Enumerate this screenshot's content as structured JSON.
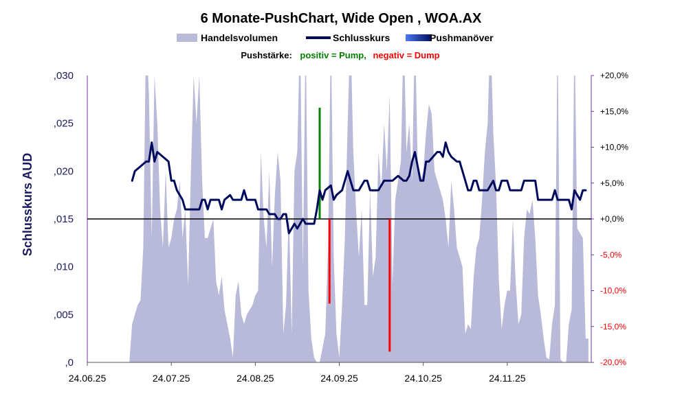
{
  "chart_data": {
    "type": "line",
    "title": "6 Monate-PushChart, Wide Open , WOA.AX",
    "legend": {
      "placement": "top-center",
      "items": [
        {
          "label": "Handelsvolumen",
          "color": "#b9b9d9"
        },
        {
          "label": "Schlusskurs",
          "color": "#000a5c"
        },
        {
          "label": "Pushmanöver",
          "color": "#3a5fd6"
        }
      ]
    },
    "push_legend": {
      "label": "Pushstärke:",
      "positive": "positiv = Pump,",
      "negative": "negativ = Dump",
      "positive_color": "#008000",
      "negative_color": "#ff0000"
    },
    "ylabel": "Schlusskurs AUD",
    "ylim": [
      0,
      0.03
    ],
    "yticks": [
      ",030",
      ",025",
      ",020",
      ",015",
      ",010",
      ",005",
      ",0"
    ],
    "y2lim": [
      -20,
      20
    ],
    "y2ticks": [
      {
        "label": "+20,0%",
        "color": "#000000"
      },
      {
        "label": "+15,0%",
        "color": "#000000"
      },
      {
        "label": "+10,0%",
        "color": "#000000"
      },
      {
        "label": "+5,0%",
        "color": "#000000"
      },
      {
        "label": "+0,0%",
        "color": "#000000"
      },
      {
        "label": "-5,0%",
        "color": "#ff0000"
      },
      {
        "label": "-10,0%",
        "color": "#ff0000"
      },
      {
        "label": "-15,0%",
        "color": "#ff0000"
      },
      {
        "label": "-20,0%",
        "color": "#ff0000"
      }
    ],
    "xticks": [
      "24.06.25",
      "24.07.25",
      "24.08.25",
      "24.09.25",
      "24.10.25",
      "24.11.25"
    ],
    "x_range_days": [
      0,
      180
    ],
    "grid": false,
    "close": [
      [
        16,
        0.019
      ],
      [
        17,
        0.02
      ],
      [
        19,
        0.0205
      ],
      [
        21,
        0.021
      ],
      [
        22,
        0.021
      ],
      [
        23,
        0.023
      ],
      [
        24,
        0.021
      ],
      [
        25,
        0.022
      ],
      [
        27,
        0.0215
      ],
      [
        29,
        0.021
      ],
      [
        30,
        0.019
      ],
      [
        31,
        0.019
      ],
      [
        32,
        0.018
      ],
      [
        34,
        0.017
      ],
      [
        35,
        0.016
      ],
      [
        37,
        0.016
      ],
      [
        40,
        0.016
      ],
      [
        41,
        0.017
      ],
      [
        42,
        0.017
      ],
      [
        43,
        0.016
      ],
      [
        44,
        0.017
      ],
      [
        47,
        0.017
      ],
      [
        48,
        0.016
      ],
      [
        49,
        0.017
      ],
      [
        51,
        0.0175
      ],
      [
        52,
        0.017
      ],
      [
        55,
        0.017
      ],
      [
        56,
        0.018
      ],
      [
        57,
        0.017
      ],
      [
        60,
        0.017
      ],
      [
        61,
        0.016
      ],
      [
        62,
        0.016
      ],
      [
        64,
        0.016
      ],
      [
        65,
        0.0155
      ],
      [
        67,
        0.0155
      ],
      [
        68,
        0.015
      ],
      [
        69,
        0.015
      ],
      [
        70,
        0.0155
      ],
      [
        71,
        0.0155
      ],
      [
        72,
        0.0135
      ],
      [
        74,
        0.0145
      ],
      [
        75,
        0.014
      ],
      [
        76,
        0.0145
      ],
      [
        77,
        0.015
      ],
      [
        78,
        0.0145
      ],
      [
        79,
        0.0145
      ],
      [
        81,
        0.0145
      ],
      [
        82,
        0.016
      ],
      [
        83,
        0.018
      ],
      [
        84,
        0.017
      ],
      [
        85,
        0.018
      ],
      [
        87,
        0.0185
      ],
      [
        88,
        0.017
      ],
      [
        89,
        0.0175
      ],
      [
        91,
        0.018
      ],
      [
        93,
        0.02
      ],
      [
        94,
        0.019
      ],
      [
        95,
        0.018
      ],
      [
        97,
        0.018
      ],
      [
        99,
        0.019
      ],
      [
        100,
        0.019
      ],
      [
        101,
        0.018
      ],
      [
        104,
        0.018
      ],
      [
        106,
        0.019
      ],
      [
        107,
        0.019
      ],
      [
        108,
        0.019
      ],
      [
        109,
        0.019
      ],
      [
        111,
        0.0195
      ],
      [
        113,
        0.019
      ],
      [
        114,
        0.019
      ],
      [
        115,
        0.0195
      ],
      [
        116,
        0.021
      ],
      [
        117,
        0.022
      ],
      [
        119,
        0.019
      ],
      [
        120,
        0.019
      ],
      [
        121,
        0.021
      ],
      [
        122,
        0.021
      ],
      [
        125,
        0.022
      ],
      [
        126,
        0.022
      ],
      [
        127,
        0.0215
      ],
      [
        128,
        0.023
      ],
      [
        129,
        0.022
      ],
      [
        130,
        0.0215
      ],
      [
        132,
        0.021
      ],
      [
        133,
        0.021
      ],
      [
        135,
        0.019
      ],
      [
        136,
        0.018
      ],
      [
        137,
        0.018
      ],
      [
        138,
        0.019
      ],
      [
        139,
        0.019
      ],
      [
        140,
        0.018
      ],
      [
        142,
        0.018
      ],
      [
        143,
        0.018
      ],
      [
        144,
        0.0185
      ],
      [
        145,
        0.019
      ],
      [
        146,
        0.018
      ],
      [
        147,
        0.018
      ],
      [
        148,
        0.019
      ],
      [
        150,
        0.019
      ],
      [
        151,
        0.018
      ],
      [
        152,
        0.018
      ],
      [
        155,
        0.018
      ],
      [
        156,
        0.019
      ],
      [
        157,
        0.019
      ],
      [
        159,
        0.019
      ],
      [
        160,
        0.019
      ],
      [
        161,
        0.017
      ],
      [
        163,
        0.017
      ],
      [
        164,
        0.017
      ],
      [
        165,
        0.017
      ],
      [
        166,
        0.017
      ],
      [
        167,
        0.018
      ],
      [
        168,
        0.017
      ],
      [
        170,
        0.017
      ],
      [
        172,
        0.017
      ],
      [
        173,
        0.016
      ],
      [
        174,
        0.018
      ],
      [
        175,
        0.0175
      ],
      [
        176,
        0.017
      ],
      [
        177,
        0.018
      ],
      [
        178,
        0.018
      ]
    ],
    "volume": [
      [
        0,
        0
      ],
      [
        15,
        0
      ],
      [
        16,
        0.004
      ],
      [
        17,
        0.005
      ],
      [
        18,
        0.006
      ],
      [
        19,
        0.0065
      ],
      [
        20,
        0.012
      ],
      [
        21,
        0.035
      ],
      [
        22,
        0.028
      ],
      [
        23,
        0.013
      ],
      [
        24,
        0.03
      ],
      [
        25,
        0.025
      ],
      [
        26,
        0.016
      ],
      [
        27,
        0.012
      ],
      [
        28,
        0.02
      ],
      [
        29,
        0.012
      ],
      [
        30,
        0.013
      ],
      [
        31,
        0.015
      ],
      [
        32,
        0.016
      ],
      [
        33,
        0.019
      ],
      [
        34,
        0.013
      ],
      [
        35,
        0.016
      ],
      [
        36,
        0.008
      ],
      [
        37,
        0.02
      ],
      [
        38,
        0.03
      ],
      [
        39,
        0.025
      ],
      [
        40,
        0.03
      ],
      [
        41,
        0.019
      ],
      [
        42,
        0.013
      ],
      [
        43,
        0.013
      ],
      [
        44,
        0.014
      ],
      [
        45,
        0.015
      ],
      [
        46,
        0.0085
      ],
      [
        47,
        0.007
      ],
      [
        48,
        0.009
      ],
      [
        49,
        0.0055
      ],
      [
        50,
        0.004
      ],
      [
        51,
        0.0025
      ],
      [
        52,
        0.0005
      ],
      [
        53,
        0.007
      ],
      [
        54,
        0.0085
      ],
      [
        55,
        0.005
      ],
      [
        56,
        0.004
      ],
      [
        57,
        0.005
      ],
      [
        58,
        0.0055
      ],
      [
        59,
        0.006
      ],
      [
        60,
        0.007
      ],
      [
        61,
        0.0075
      ],
      [
        62,
        0.022
      ],
      [
        63,
        0.015
      ],
      [
        64,
        0.012
      ],
      [
        65,
        0.02
      ],
      [
        66,
        0.01
      ],
      [
        67,
        0.0175
      ],
      [
        68,
        0.022
      ],
      [
        69,
        0.019
      ],
      [
        70,
        0.003
      ],
      [
        71,
        0.006
      ],
      [
        72,
        0.016
      ],
      [
        73,
        0.003
      ],
      [
        74,
        0.02
      ],
      [
        75,
        0.022
      ],
      [
        76,
        0.035
      ],
      [
        77,
        0.01
      ],
      [
        78,
        0.035
      ],
      [
        79,
        0.0075
      ],
      [
        80,
        0.0025
      ],
      [
        81,
        0.0005
      ],
      [
        82,
        0.0
      ],
      [
        83,
        0.0
      ],
      [
        84,
        0.0015
      ],
      [
        85,
        0.003
      ],
      [
        86,
        0.012
      ],
      [
        87,
        0.035
      ],
      [
        88,
        0.011
      ],
      [
        89,
        0.003
      ],
      [
        90,
        0.0005
      ],
      [
        91,
        0.006
      ],
      [
        92,
        0.013
      ],
      [
        93,
        0.025
      ],
      [
        94,
        0.035
      ],
      [
        95,
        0.022
      ],
      [
        96,
        0.016
      ],
      [
        97,
        0.011
      ],
      [
        98,
        0.016
      ],
      [
        99,
        0.006
      ],
      [
        100,
        0.006
      ],
      [
        101,
        0.018
      ],
      [
        102,
        0.009
      ],
      [
        103,
        0.011
      ],
      [
        104,
        0.022
      ],
      [
        105,
        0.018
      ],
      [
        106,
        0.025
      ],
      [
        107,
        0.02
      ],
      [
        108,
        0.028
      ],
      [
        109,
        0.008
      ],
      [
        110,
        0.017
      ],
      [
        111,
        0.019
      ],
      [
        112,
        0.021
      ],
      [
        113,
        0.035
      ],
      [
        114,
        0.022
      ],
      [
        115,
        0.025
      ],
      [
        116,
        0.019
      ],
      [
        117,
        0.035
      ],
      [
        118,
        0.021
      ],
      [
        119,
        0.019
      ],
      [
        120,
        0.02
      ],
      [
        121,
        0.024
      ],
      [
        122,
        0.027
      ],
      [
        123,
        0.026
      ],
      [
        124,
        0.02
      ],
      [
        125,
        0.019
      ],
      [
        126,
        0.018
      ],
      [
        127,
        0.017
      ],
      [
        128,
        0.015
      ],
      [
        129,
        0.012
      ],
      [
        130,
        0.019
      ],
      [
        131,
        0.016
      ],
      [
        132,
        0.012
      ],
      [
        133,
        0.011
      ],
      [
        134,
        0.01
      ],
      [
        135,
        0.003
      ],
      [
        136,
        0.004
      ],
      [
        137,
        0.0035
      ],
      [
        138,
        0.009
      ],
      [
        139,
        0.012
      ],
      [
        140,
        0.013
      ],
      [
        141,
        0.017
      ],
      [
        142,
        0.022
      ],
      [
        143,
        0.025
      ],
      [
        144,
        0.035
      ],
      [
        145,
        0.024
      ],
      [
        146,
        0.0185
      ],
      [
        147,
        0.0085
      ],
      [
        148,
        0.0035
      ],
      [
        149,
        0.006
      ],
      [
        150,
        0.0075
      ],
      [
        151,
        0.0075
      ],
      [
        152,
        0.015
      ],
      [
        153,
        0.0085
      ],
      [
        154,
        0.004
      ],
      [
        155,
        0.005
      ],
      [
        156,
        0.013
      ],
      [
        157,
        0.016
      ],
      [
        158,
        0.0155
      ],
      [
        159,
        0.017
      ],
      [
        160,
        0.013
      ],
      [
        161,
        0.007
      ],
      [
        162,
        0.005
      ],
      [
        163,
        0.0025
      ],
      [
        164,
        0.0005
      ],
      [
        165,
        0.0003
      ],
      [
        166,
        0.004
      ],
      [
        167,
        0.006
      ],
      [
        168,
        0.035
      ],
      [
        169,
        0.0003
      ],
      [
        170,
        0.0
      ],
      [
        171,
        0.0
      ],
      [
        172,
        0.004
      ],
      [
        173,
        0.0055
      ],
      [
        174,
        0.035
      ],
      [
        175,
        0.014
      ],
      [
        176,
        0.0135
      ],
      [
        177,
        0.013
      ],
      [
        178,
        0.0025
      ],
      [
        179,
        0.0025
      ]
    ],
    "push": [
      {
        "x": 83,
        "value": 15.5
      },
      {
        "x": 86.5,
        "value": -11.8
      },
      {
        "x": 108,
        "value": -18.5
      }
    ]
  }
}
